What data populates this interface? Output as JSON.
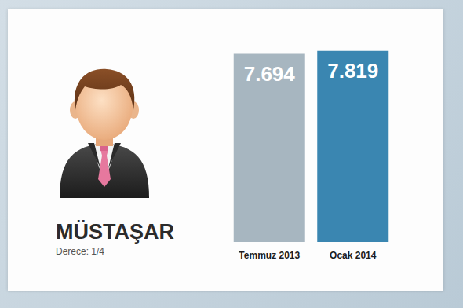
{
  "chart_data": {
    "type": "bar",
    "title": "MÜSTAŞAR",
    "subtitle": "Derece: 1/4",
    "categories": [
      "Temmuz 2013",
      "Ocak 2014"
    ],
    "values": [
      7694,
      7819
    ],
    "value_labels": [
      "7.694",
      "7.819"
    ],
    "colors": [
      "#a7b6c0",
      "#3a86b1"
    ],
    "ylim": [
      0,
      8000
    ],
    "data_labels": true,
    "tick_labels": "x",
    "grid": false
  }
}
